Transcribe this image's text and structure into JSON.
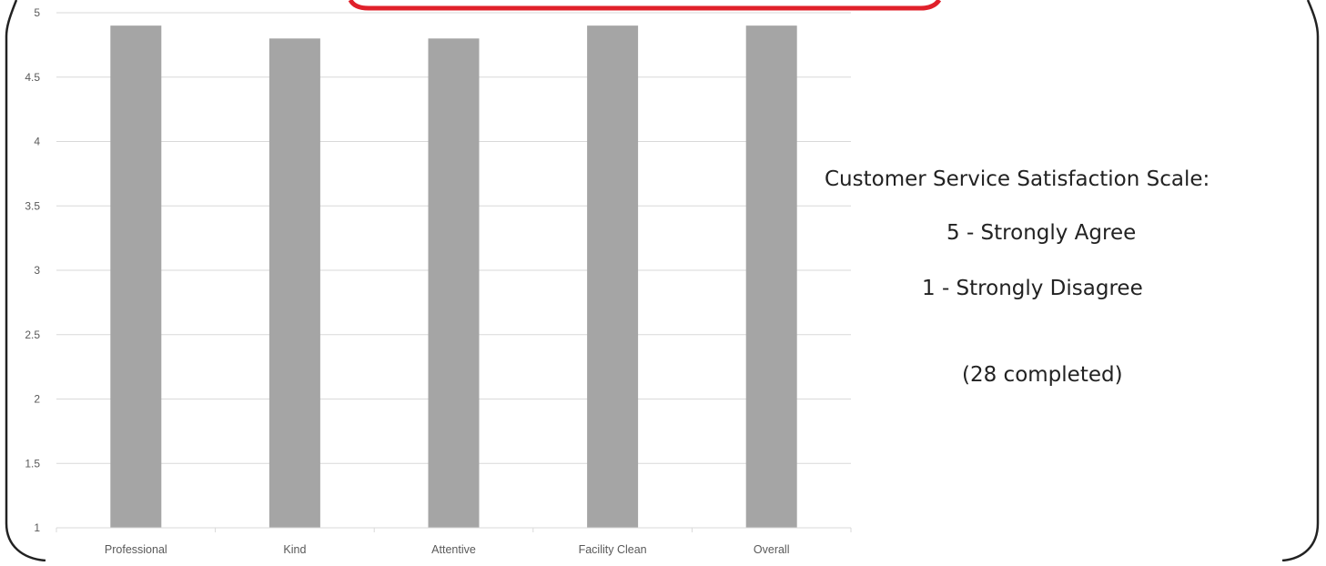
{
  "chart_data": {
    "type": "bar",
    "categories": [
      "Professional",
      "Kind",
      "Attentive",
      "Facility Clean",
      "Overall"
    ],
    "values": [
      4.9,
      4.8,
      4.8,
      4.9,
      4.9
    ],
    "ylim": [
      1,
      5
    ],
    "yticks": [
      1,
      1.5,
      2,
      2.5,
      3,
      3.5,
      4,
      4.5,
      5
    ],
    "ytick_labels": [
      "1",
      "1.5",
      "2",
      "2.5",
      "3",
      "3.5",
      "4",
      "4.5",
      "5"
    ],
    "grid": true,
    "title": "",
    "xlabel": "",
    "ylabel": ""
  },
  "colors": {
    "bar": "#a5a5a5",
    "grid": "#d9d9d9",
    "frame_border": "#222222",
    "banner_accent": "#e0202a"
  },
  "info_panel": {
    "heading": "Customer Service Satisfaction Scale:",
    "scale_high": "5 - Strongly Agree",
    "scale_low": "1 - Strongly Disagree",
    "completed": "(28 completed)"
  }
}
